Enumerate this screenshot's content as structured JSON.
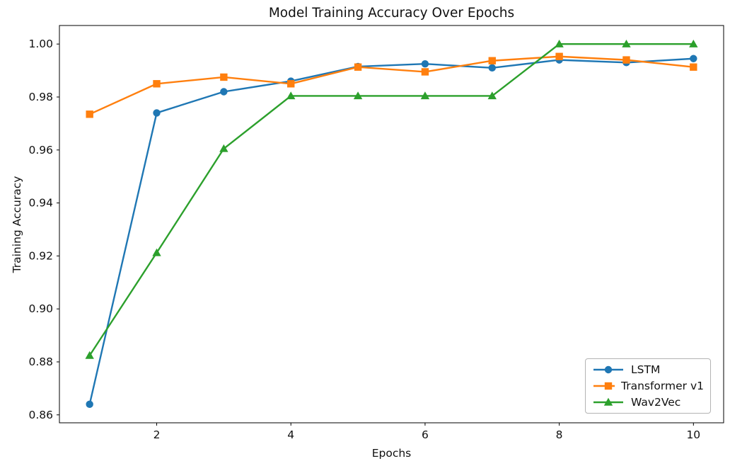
{
  "chart_data": {
    "type": "line",
    "title": "Model Training Accuracy Over Epochs",
    "xlabel": "Epochs",
    "ylabel": "Training Accuracy",
    "x": [
      1,
      2,
      3,
      4,
      5,
      6,
      7,
      8,
      9,
      10
    ],
    "xlim": [
      0.55,
      10.45
    ],
    "ylim": [
      0.857,
      1.007
    ],
    "xticks": [
      2,
      4,
      6,
      8,
      10
    ],
    "yticks": [
      0.86,
      0.88,
      0.9,
      0.92,
      0.94,
      0.96,
      0.98,
      1.0
    ],
    "grid": false,
    "legend_position": "lower right",
    "axis_color": "#000000",
    "background_color": "#ffffff",
    "series": [
      {
        "name": "LSTM",
        "color": "#1f77b4",
        "marker": "circle",
        "values": [
          0.864,
          0.974,
          0.982,
          0.986,
          0.9915,
          0.9925,
          0.991,
          0.994,
          0.993,
          0.9945
        ]
      },
      {
        "name": "Transformer v1",
        "color": "#ff7f0e",
        "marker": "square",
        "values": [
          0.9735,
          0.985,
          0.9875,
          0.985,
          0.9913,
          0.9895,
          0.9937,
          0.9953,
          0.994,
          0.9913
        ]
      },
      {
        "name": "Wav2Vec",
        "color": "#2ca02c",
        "marker": "triangle",
        "values": [
          0.8824,
          0.9212,
          0.9605,
          0.9804,
          0.9804,
          0.9804,
          0.9804,
          1.0,
          1.0,
          1.0
        ]
      }
    ]
  }
}
